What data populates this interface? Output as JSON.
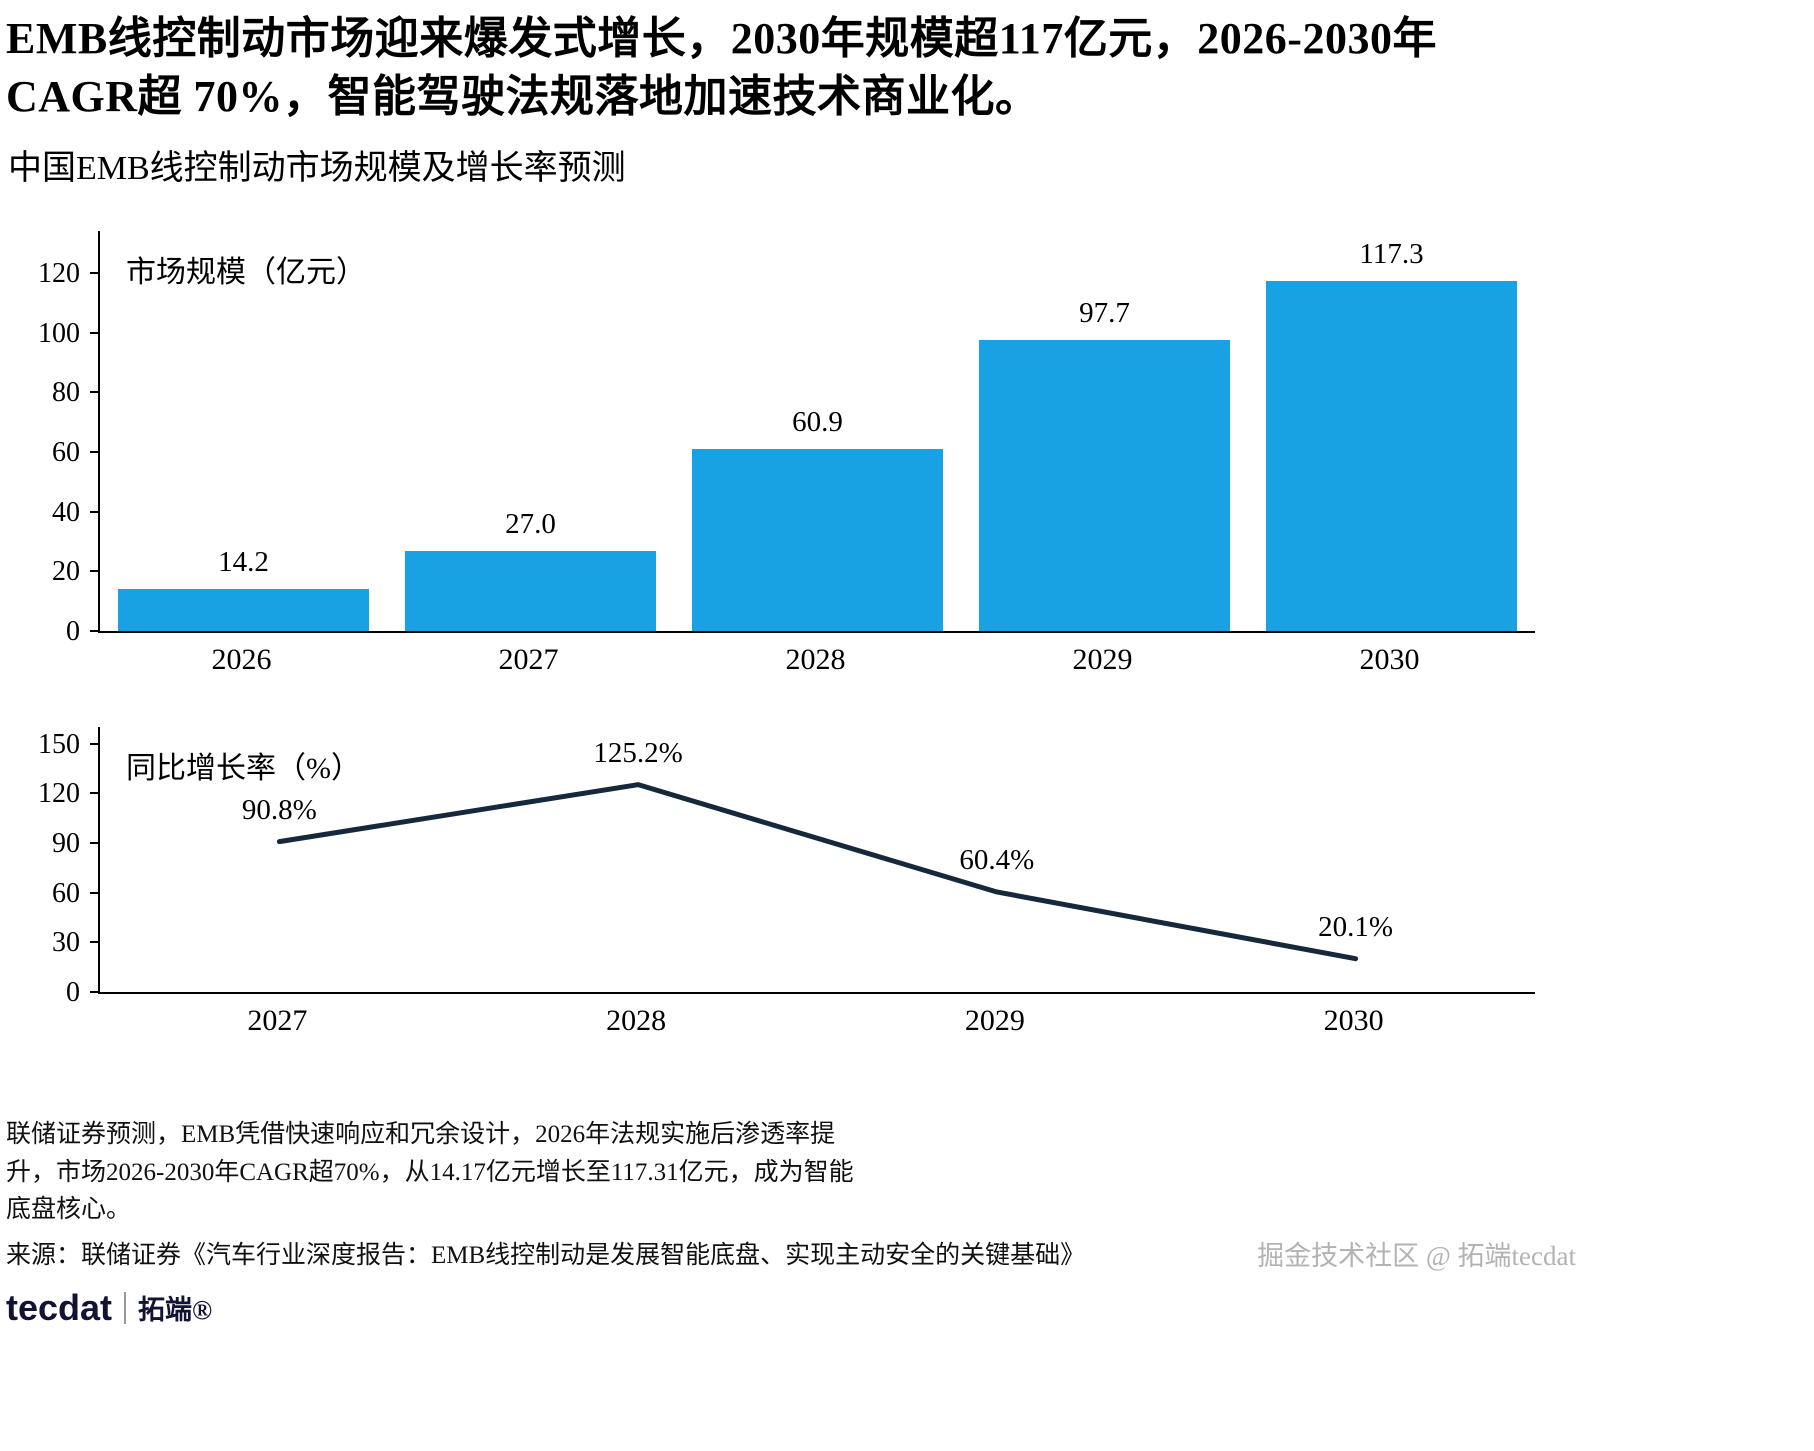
{
  "header": {
    "headline_line1": "EMB线控制动市场迎来爆发式增长，2030年规模超117亿元，2026-2030年",
    "headline_line2": "CAGR超 70%，智能驾驶法规落地加速技术商业化。",
    "subtitle": "中国EMB线控制动市场规模及增长率预测"
  },
  "colors": {
    "bar": "#18A2E4",
    "line": "#16293C",
    "axis": "#000000",
    "watermark": "#b3b3b3"
  },
  "chart_data": [
    {
      "type": "bar",
      "title": "市场规模（亿元）",
      "categories": [
        "2026",
        "2027",
        "2028",
        "2029",
        "2030"
      ],
      "values": [
        14.2,
        27.0,
        60.9,
        97.7,
        117.3
      ],
      "value_labels": [
        "14.2",
        "27.0",
        "60.9",
        "97.7",
        "117.3"
      ],
      "yticks": [
        0,
        20,
        40,
        60,
        80,
        100,
        120
      ],
      "ylim": [
        0,
        134
      ],
      "xlabel": "",
      "ylabel": "市场规模（亿元）",
      "grid": false,
      "legend": "none",
      "bar_color": "#18A2E4"
    },
    {
      "type": "line",
      "title": "同比增长率（%）",
      "categories": [
        "2027",
        "2028",
        "2029",
        "2030"
      ],
      "values": [
        90.8,
        125.2,
        60.4,
        20.1
      ],
      "value_labels": [
        "90.8%",
        "125.2%",
        "60.4%",
        "20.1%"
      ],
      "yticks": [
        0,
        30,
        60,
        90,
        120,
        150
      ],
      "ylim": [
        0,
        160
      ],
      "xlabel": "",
      "ylabel": "同比增长率（%）",
      "grid": false,
      "legend": "none",
      "line_color": "#16293C"
    }
  ],
  "footer": {
    "note": "联储证券预测，EMB凭借快速响应和冗余设计，2026年法规实施后渗透率提升，市场2026-2030年CAGR超70%，从14.17亿元增长至117.31亿元，成为智能底盘核心。",
    "source": "来源：联储证券《汽车行业深度报告：EMB线控制动是发展智能底盘、实现主动安全的关键基础》",
    "logo_text": "tecdat",
    "logo_suffix": "拓端®",
    "watermark": "掘金技术社区 @ 拓端tecdat"
  }
}
